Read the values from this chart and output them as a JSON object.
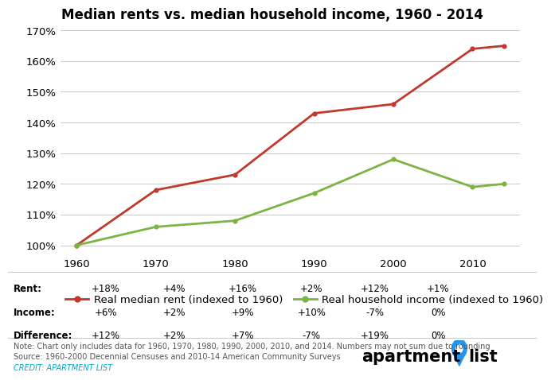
{
  "title": "Median rents vs. median household income, 1960 - 2014",
  "years": [
    1960,
    1970,
    1980,
    1990,
    2000,
    2010,
    2014
  ],
  "rent_values": [
    100,
    118,
    123,
    143,
    146,
    164,
    165
  ],
  "income_values": [
    100,
    106,
    108,
    117,
    128,
    119,
    120
  ],
  "rent_color": "#c0392b",
  "income_color": "#7cb342",
  "rent_label": "Real median rent (indexed to 1960)",
  "income_label": "Real household income (indexed to 1960)",
  "ylim": [
    97,
    173
  ],
  "yticks": [
    100,
    110,
    120,
    130,
    140,
    150,
    160,
    170
  ],
  "xlim": [
    1958,
    2016
  ],
  "xticks": [
    1960,
    1970,
    1980,
    1990,
    2000,
    2010
  ],
  "table_data": [
    [
      "Rent:",
      "+18%",
      "+4%",
      "+16%",
      "+2%",
      "+12%",
      "+1%"
    ],
    [
      "Income:",
      "+6%",
      "+2%",
      "+9%",
      "+10%",
      "-7%",
      "0%"
    ],
    [
      "Difference:",
      "+12%",
      "+2%",
      "+7%",
      "-7%",
      "+19%",
      "0%"
    ]
  ],
  "note_text": "Note: Chart only includes data for 1960, 1970, 1980, 1990, 2000, 2010, and 2014. Numbers may not sum due to rounding\nSource: 1960-2000 Decennial Censuses and 2010-14 American Community Surveys",
  "credit_text": "CREDIT: APARTMENT LIST",
  "credit_color": "#00aacc",
  "background_color": "#ffffff",
  "grid_color": "#cccccc",
  "title_fontsize": 12,
  "axis_fontsize": 9.5,
  "legend_fontsize": 9.5,
  "table_fontsize": 8.5,
  "note_fontsize": 7
}
